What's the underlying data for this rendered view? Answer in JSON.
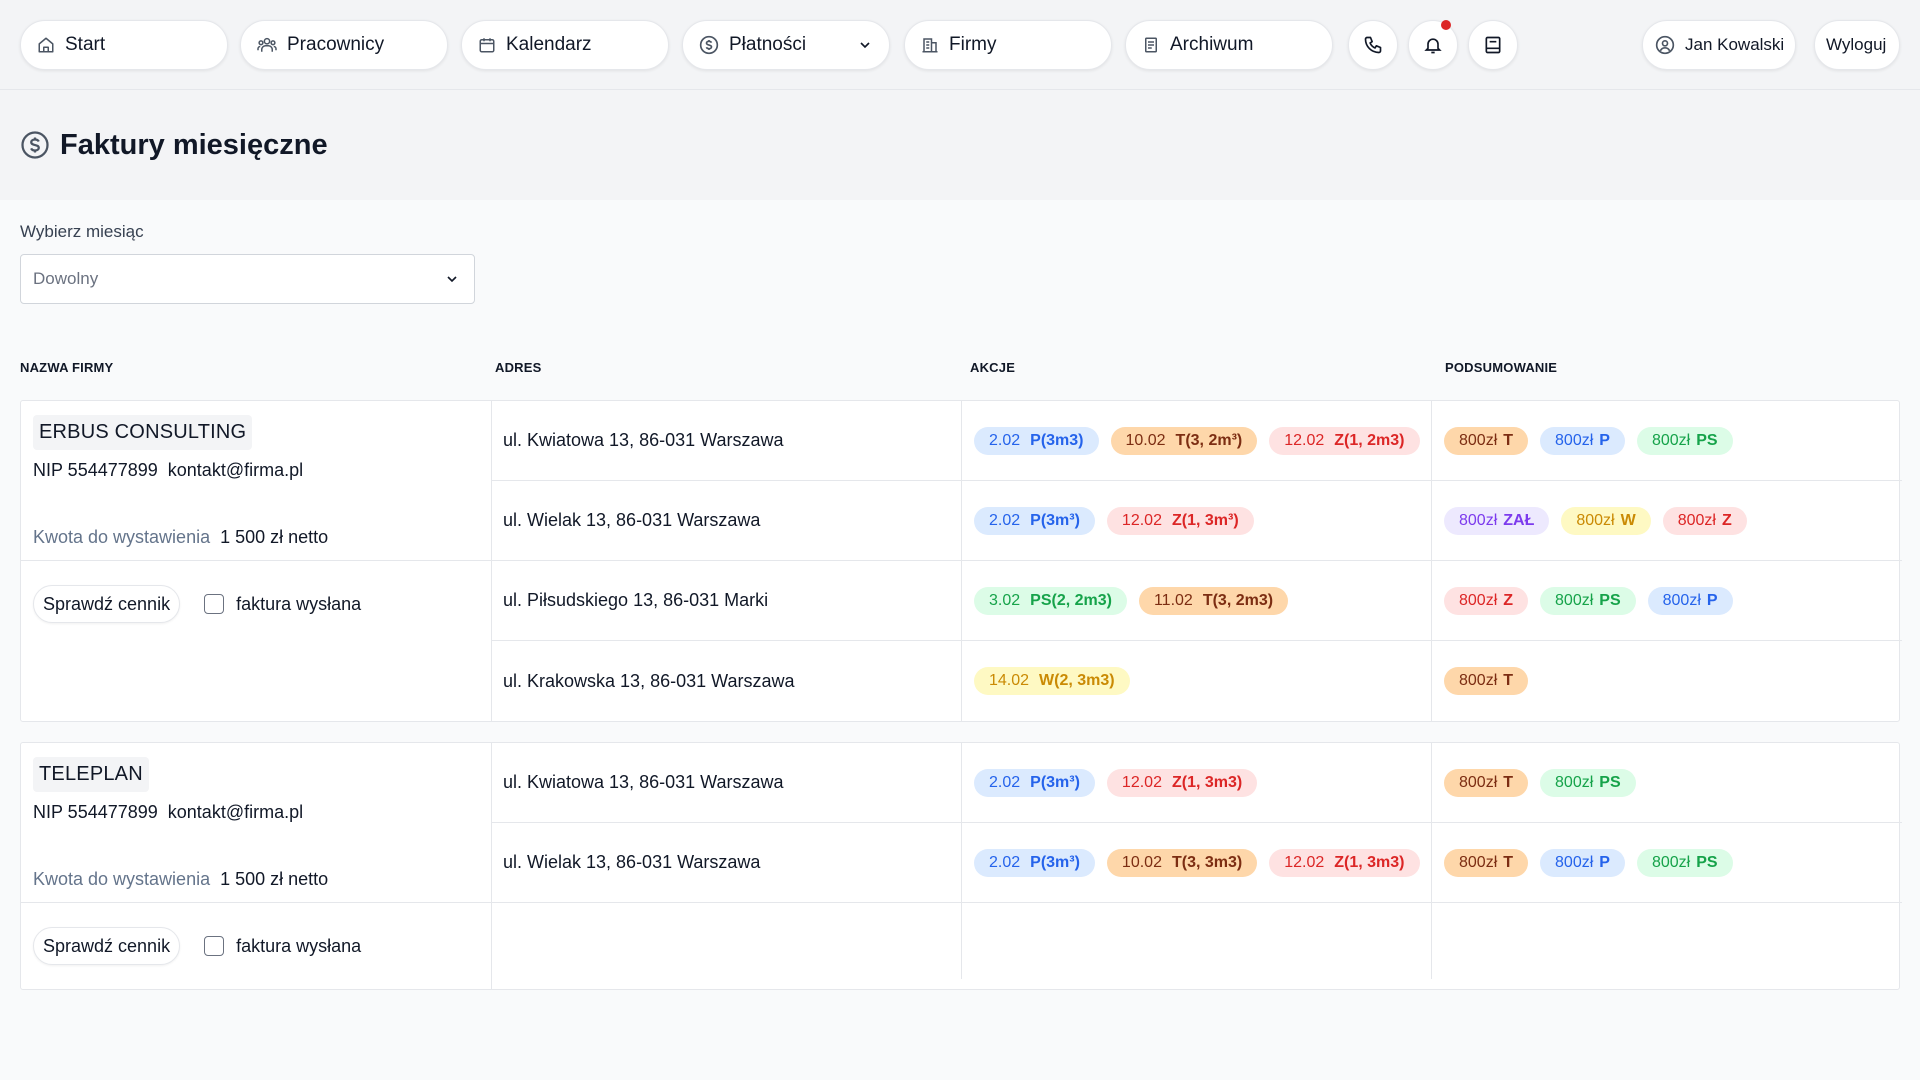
{
  "nav": {
    "start": "Start",
    "pracownicy": "Pracownicy",
    "kalendarz": "Kalendarz",
    "platnosci": "Płatności",
    "firmy": "Firmy",
    "archiwum": "Archiwum",
    "user": "Jan Kowalski",
    "logout": "Wyloguj"
  },
  "header": {
    "title": "Faktury miesięczne"
  },
  "filter": {
    "label": "Wybierz miesiąc",
    "value": "Dowolny"
  },
  "table": {
    "columns": [
      "NAZWA FIRMY",
      "ADRES",
      "AKCJE",
      "PODSUMOWANIE"
    ],
    "companies": [
      {
        "name": "ERBUS CONSULTING",
        "nip": "NIP 554477899",
        "email": "kontakt@firma.pl",
        "amount_label": "Kwota do wystawienia",
        "amount": "1 500 zł netto",
        "cennik": "Sprawdź cennik",
        "sent_label": "faktura wysłana",
        "rows": [
          {
            "address": "ul. Kwiatowa 13, 86-031 Warszawa",
            "actions": [
              {
                "date": "2.02",
                "code": "P(3m3)",
                "color": "blue"
              },
              {
                "date": "10.02",
                "code": "T(3, 2m³)",
                "color": "orange"
              },
              {
                "date": "12.02",
                "code": "Z(1, 2m3)",
                "color": "red"
              }
            ],
            "summary": [
              {
                "amount": "800zł",
                "code": "T",
                "color": "orange"
              },
              {
                "amount": "800zł",
                "code": "P",
                "color": "blue"
              },
              {
                "amount": "800zł",
                "code": "PS",
                "color": "green"
              }
            ]
          },
          {
            "address": "ul. Wielak 13, 86-031 Warszawa",
            "actions": [
              {
                "date": "2.02",
                "code": "P(3m³)",
                "color": "blue"
              },
              {
                "date": "12.02",
                "code": "Z(1, 3m³)",
                "color": "red"
              }
            ],
            "summary": [
              {
                "amount": "800zł",
                "code": "ZAŁ",
                "color": "purple"
              },
              {
                "amount": "800zł",
                "code": "W",
                "color": "yellow"
              },
              {
                "amount": "800zł",
                "code": "Z",
                "color": "red"
              }
            ]
          },
          {
            "address": "ul. Piłsudskiego 13, 86-031 Marki",
            "actions": [
              {
                "date": "3.02",
                "code": "PS(2, 2m3)",
                "color": "green"
              },
              {
                "date": "11.02",
                "code": "T(3, 2m3)",
                "color": "orange"
              }
            ],
            "summary": [
              {
                "amount": "800zł",
                "code": "Z",
                "color": "red"
              },
              {
                "amount": "800zł",
                "code": "PS",
                "color": "green"
              },
              {
                "amount": "800zł",
                "code": "P",
                "color": "blue"
              }
            ]
          },
          {
            "address": "ul. Krakowska 13, 86-031 Warszawa",
            "actions": [
              {
                "date": "14.02",
                "code": "W(2, 3m3)",
                "color": "yellow"
              }
            ],
            "summary": [
              {
                "amount": "800zł",
                "code": "T",
                "color": "orange"
              }
            ]
          }
        ]
      },
      {
        "name": "TELEPLAN",
        "nip": "NIP 554477899",
        "email": "kontakt@firma.pl",
        "amount_label": "Kwota do wystawienia",
        "amount": "1 500 zł netto",
        "cennik": "Sprawdź cennik",
        "sent_label": "faktura wysłana",
        "rows": [
          {
            "address": "ul. Kwiatowa 13, 86-031 Warszawa",
            "actions": [
              {
                "date": "2.02",
                "code": "P(3m³)",
                "color": "blue"
              },
              {
                "date": "12.02",
                "code": "Z(1, 3m3)",
                "color": "red"
              }
            ],
            "summary": [
              {
                "amount": "800zł",
                "code": "T",
                "color": "orange"
              },
              {
                "amount": "800zł",
                "code": "PS",
                "color": "green"
              }
            ]
          },
          {
            "address": "ul. Wielak 13, 86-031 Warszawa",
            "actions": [
              {
                "date": "2.02",
                "code": "P(3m³)",
                "color": "blue"
              },
              {
                "date": "10.02",
                "code": "T(3, 3m3)",
                "color": "orange"
              },
              {
                "date": "12.02",
                "code": "Z(1, 3m3)",
                "color": "red"
              }
            ],
            "summary": [
              {
                "amount": "800zł",
                "code": "T",
                "color": "orange"
              },
              {
                "amount": "800zł",
                "code": "P",
                "color": "blue"
              },
              {
                "amount": "800zł",
                "code": "PS",
                "color": "green"
              }
            ]
          }
        ]
      }
    ]
  }
}
